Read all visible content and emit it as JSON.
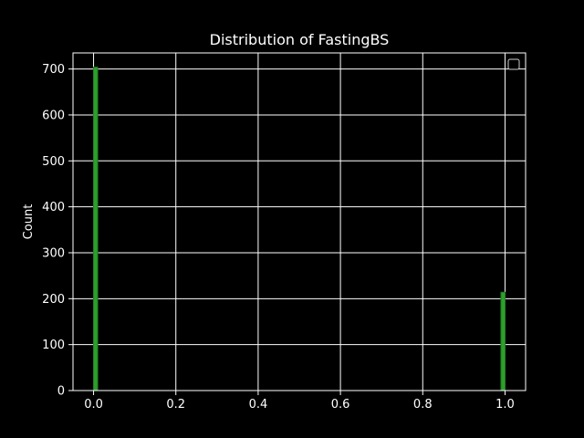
{
  "chart_data": {
    "type": "bar",
    "title": "Distribution of FastingBS",
    "xlabel": "",
    "ylabel": "Count",
    "x": [
      0,
      1
    ],
    "values": [
      704,
      214
    ],
    "bin_width": 0.01,
    "xlim": [
      -0.05,
      1.05
    ],
    "ylim": [
      0,
      735
    ],
    "xticks": [
      "0.0",
      "0.2",
      "0.4",
      "0.6",
      "0.8",
      "1.0"
    ],
    "yticks": [
      "0",
      "100",
      "200",
      "300",
      "400",
      "500",
      "600",
      "700"
    ],
    "grid": true,
    "legend": "top-right (empty)",
    "colors": {
      "background": "#000000",
      "bar": "#2ca02c",
      "bar_edge": "#1f7a1f",
      "grid": "#ffffff",
      "text": "#ffffff"
    }
  }
}
